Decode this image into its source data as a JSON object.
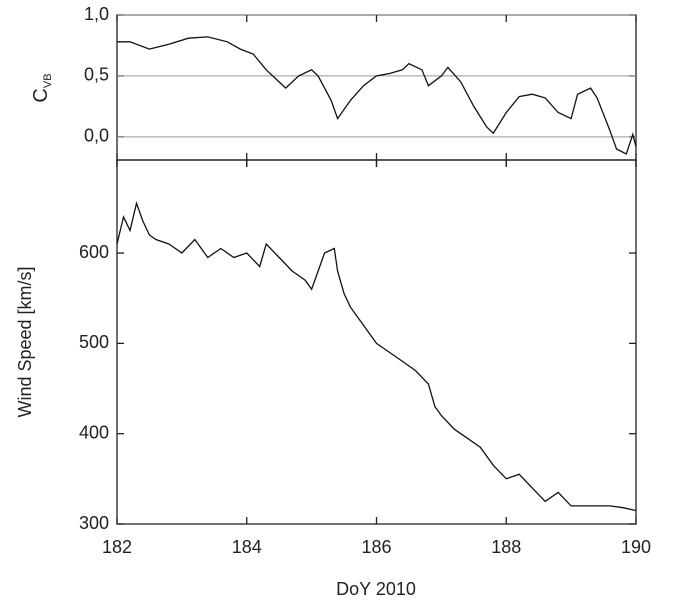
{
  "chart_data": [
    {
      "type": "line",
      "y_label": "C",
      "y_label_subscript": "VB",
      "xlim": [
        182,
        190
      ],
      "xticks": [
        182,
        184,
        186,
        188,
        190
      ],
      "ylim": [
        -0.19,
        1.0
      ],
      "yticks": [
        {
          "value": 0.0,
          "label": "0,0"
        },
        {
          "value": 0.5,
          "label": "0,5"
        },
        {
          "value": 1.0,
          "label": "1,0"
        }
      ],
      "grid": true,
      "series": [
        {
          "color": "#111111",
          "x": [
            182.0,
            182.2,
            182.5,
            182.8,
            183.1,
            183.4,
            183.7,
            183.9,
            184.1,
            184.3,
            184.5,
            184.6,
            184.8,
            185.0,
            185.1,
            185.3,
            185.4,
            185.6,
            185.8,
            186.0,
            186.2,
            186.4,
            186.5,
            186.7,
            186.8,
            187.0,
            187.1,
            187.3,
            187.5,
            187.7,
            187.8,
            188.0,
            188.2,
            188.4,
            188.6,
            188.8,
            189.0,
            189.1,
            189.3,
            189.4,
            189.6,
            189.7,
            189.85,
            189.95,
            190.0
          ],
          "values": [
            0.78,
            0.78,
            0.72,
            0.76,
            0.81,
            0.82,
            0.78,
            0.72,
            0.68,
            0.55,
            0.45,
            0.4,
            0.5,
            0.55,
            0.5,
            0.3,
            0.15,
            0.3,
            0.42,
            0.5,
            0.52,
            0.55,
            0.6,
            0.55,
            0.42,
            0.5,
            0.57,
            0.45,
            0.25,
            0.08,
            0.03,
            0.2,
            0.33,
            0.35,
            0.32,
            0.2,
            0.15,
            0.35,
            0.4,
            0.32,
            0.05,
            -0.1,
            -0.14,
            0.02,
            -0.08
          ]
        }
      ]
    },
    {
      "type": "line",
      "x_label": "DoY 2010",
      "y_label": "Wind Speed [km/s]",
      "xlim": [
        182,
        190
      ],
      "xticks": [
        182,
        184,
        186,
        188,
        190
      ],
      "ylim": [
        300,
        703
      ],
      "yticks": [
        300,
        400,
        500,
        600
      ],
      "grid": false,
      "series": [
        {
          "color": "#111111",
          "x": [
            182.0,
            182.1,
            182.2,
            182.3,
            182.4,
            182.5,
            182.6,
            182.8,
            183.0,
            183.2,
            183.4,
            183.6,
            183.8,
            184.0,
            184.2,
            184.3,
            184.5,
            184.7,
            184.9,
            185.0,
            185.1,
            185.2,
            185.35,
            185.4,
            185.5,
            185.6,
            185.8,
            186.0,
            186.2,
            186.4,
            186.6,
            186.8,
            186.9,
            187.0,
            187.2,
            187.4,
            187.6,
            187.8,
            188.0,
            188.2,
            188.4,
            188.6,
            188.8,
            189.0,
            189.3,
            189.6,
            189.8,
            190.0
          ],
          "values": [
            610,
            640,
            625,
            655,
            635,
            620,
            615,
            610,
            600,
            615,
            595,
            605,
            595,
            600,
            585,
            610,
            595,
            580,
            570,
            560,
            580,
            600,
            605,
            580,
            555,
            540,
            520,
            500,
            490,
            480,
            470,
            455,
            430,
            420,
            405,
            395,
            385,
            365,
            350,
            355,
            340,
            325,
            335,
            320,
            320,
            320,
            318,
            315
          ]
        }
      ]
    }
  ]
}
